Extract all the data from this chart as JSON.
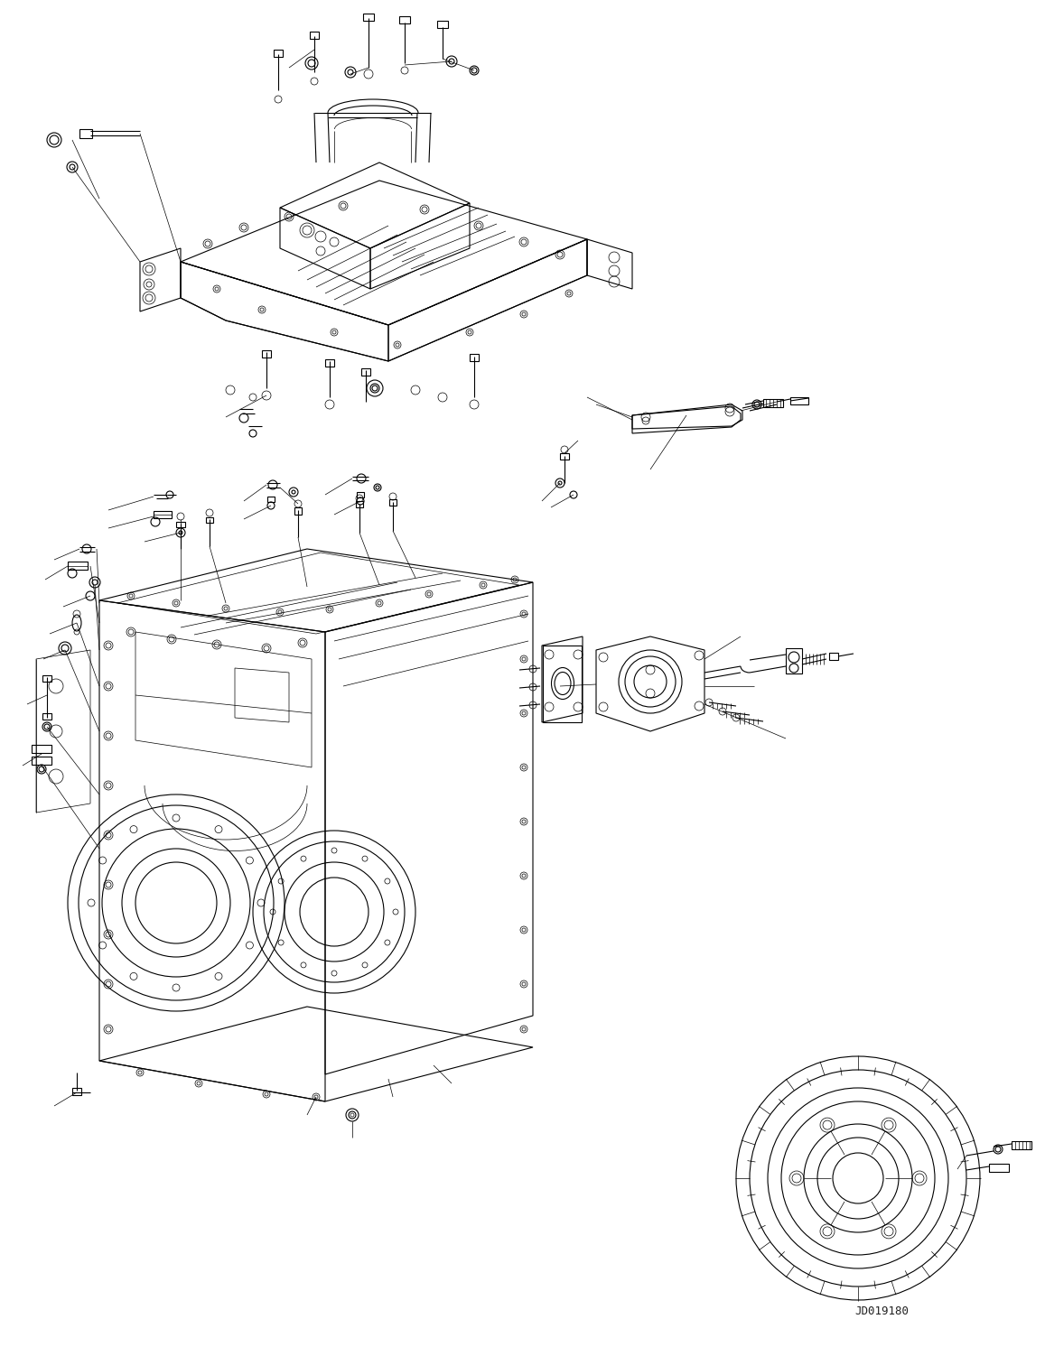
{
  "figure_width": 11.57,
  "figure_height": 14.92,
  "dpi": 100,
  "bg_color": "#ffffff",
  "line_color": "#000000",
  "line_width": 0.8,
  "thin_line": 0.5,
  "watermark": "JD019180",
  "watermark_fontsize": 9
}
